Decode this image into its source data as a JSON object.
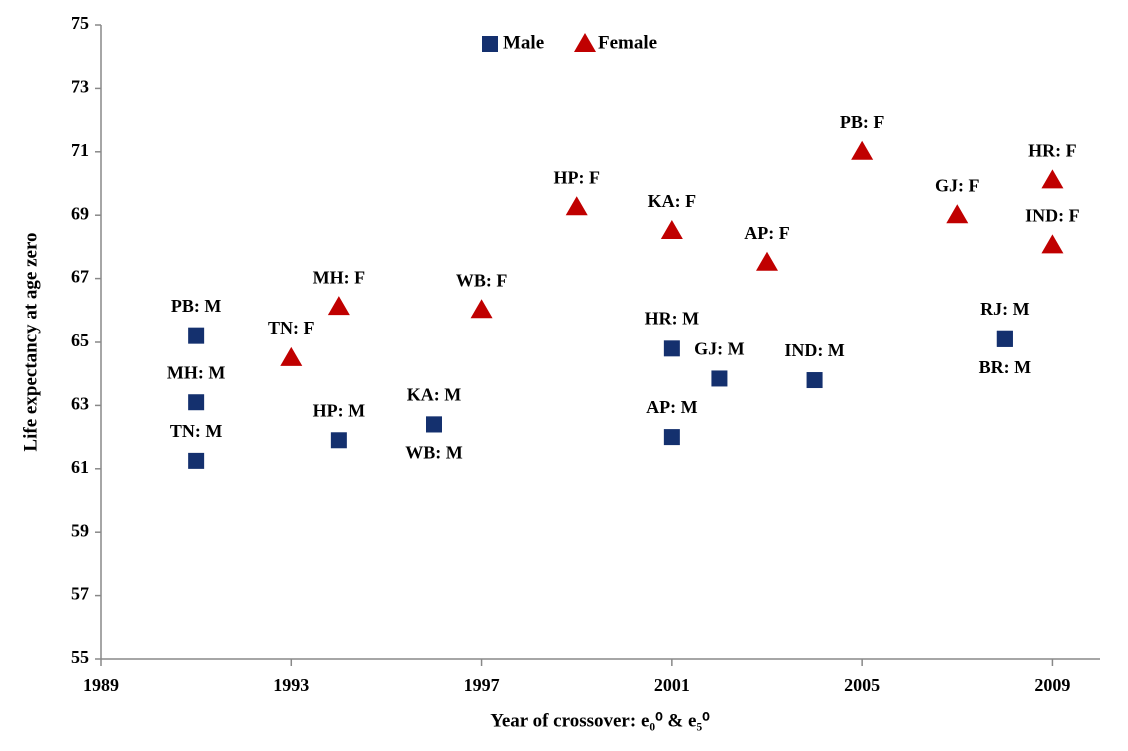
{
  "chart_data": {
    "type": "scatter",
    "x_label": "Year of crossover:  e₀⁰  &  e₅⁰",
    "y_label": "Life expectancy at age zero",
    "xlim": [
      1989,
      2010
    ],
    "xticks": [
      1989,
      1993,
      1997,
      2001,
      2005,
      2009
    ],
    "ylim": [
      55,
      75
    ],
    "yticks": [
      55,
      57,
      59,
      61,
      63,
      65,
      67,
      69,
      71,
      73,
      75
    ],
    "grid": false,
    "legend": "top",
    "series": [
      {
        "name": "Male",
        "color": "#14306e",
        "marker": "square",
        "labels": [
          "PB: M",
          "MH: M",
          "TN: M",
          "HP: M",
          "KA: M",
          "WB: M",
          "HR: M",
          "AP: M",
          "GJ: M",
          "IND: M",
          "RJ: M",
          "BR: M"
        ],
        "x": [
          1991,
          1991,
          1991,
          1994,
          1996,
          1996,
          2001,
          2001,
          2002,
          2004,
          2008,
          2008
        ],
        "values": [
          65.2,
          63.1,
          61.25,
          61.9,
          62.4,
          62.4,
          64.8,
          62.0,
          63.85,
          63.8,
          65.1,
          65.1
        ]
      },
      {
        "name": "Female",
        "color": "#c00000",
        "marker": "triangle",
        "labels": [
          "TN: F",
          "MH: F",
          "WB: F",
          "HP: F",
          "KA: F",
          "AP: F",
          "PB: F",
          "GJ: F",
          "HR: F",
          "IND: F"
        ],
        "x": [
          1993,
          1994,
          1997,
          1999,
          2001,
          2003,
          2005,
          2007,
          2009,
          2009
        ],
        "values": [
          64.5,
          66.1,
          66.0,
          69.25,
          68.5,
          67.5,
          71.0,
          69.0,
          70.1,
          68.05
        ]
      }
    ]
  }
}
